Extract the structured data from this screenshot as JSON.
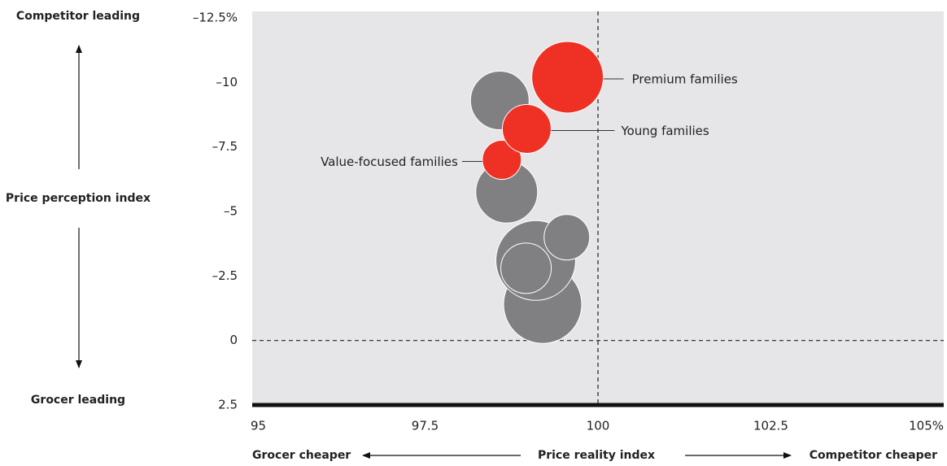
{
  "chart_data": {
    "type": "bubble",
    "points": [
      {
        "x": 99.2,
        "y": -1.4,
        "size": 48,
        "color": "#808083"
      },
      {
        "x": 99.1,
        "y": -3.1,
        "size": 49,
        "color": "#808083"
      },
      {
        "x": 98.96,
        "y": -2.8,
        "size": 31,
        "color": "#808083"
      },
      {
        "x": 99.55,
        "y": -4.0,
        "size": 28,
        "color": "#808083"
      },
      {
        "x": 98.68,
        "y": -5.75,
        "size": 38,
        "color": "#808083"
      },
      {
        "x": 98.58,
        "y": -9.3,
        "size": 36,
        "color": "#808083"
      },
      {
        "x": 98.61,
        "y": -7.0,
        "size": 24,
        "color": "#ee3124",
        "label": "Value-focused families"
      },
      {
        "x": 98.97,
        "y": -8.2,
        "size": 30,
        "color": "#ee3124",
        "label": "Young families"
      },
      {
        "x": 99.56,
        "y": -10.2,
        "size": 44,
        "color": "#ee3124",
        "label": "Premium families"
      }
    ],
    "xlim": [
      95,
      105
    ],
    "ylim": [
      2.5,
      -12.5
    ],
    "xticks": [
      95,
      97.5,
      100,
      102.5,
      {
        "value": 105,
        "label": "105%"
      }
    ],
    "yticks": [
      {
        "value": -12.5,
        "label": "–12.5%"
      },
      {
        "value": -10,
        "label": "–10"
      },
      {
        "value": -7.5,
        "label": "–7.5"
      },
      {
        "value": -5,
        "label": "–5"
      },
      {
        "value": -2.5,
        "label": "–2.5"
      },
      0,
      2.5
    ],
    "reference_lines": {
      "x": 100,
      "y": 0
    },
    "y_label": "Price perception index",
    "y_top_label": "Competitor leading",
    "y_bottom_label": "Grocer leading",
    "x_label": "Price reality index",
    "x_left_label": "Grocer cheaper",
    "x_right_label": "Competitor cheaper"
  }
}
